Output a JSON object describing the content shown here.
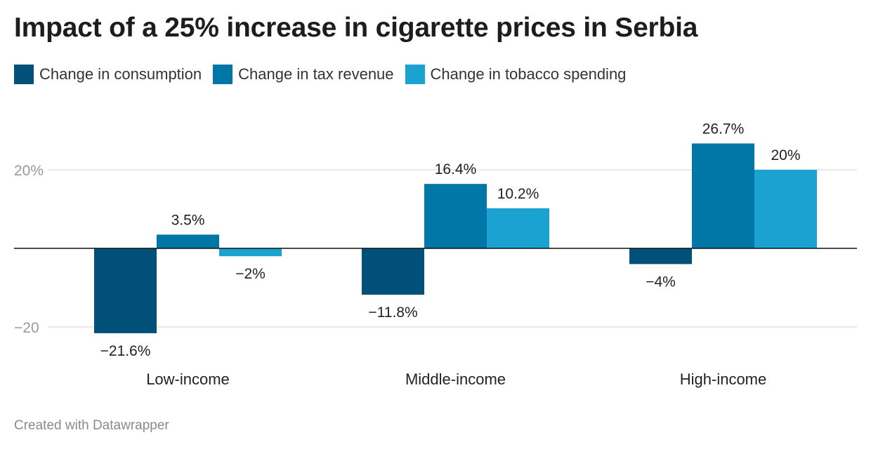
{
  "chart_data": {
    "type": "bar",
    "title": "Impact of a 25% increase in cigarette prices in Serbia",
    "categories": [
      "Low-income",
      "Middle-income",
      "High-income"
    ],
    "series": [
      {
        "name": "Change in consumption",
        "values": [
          -21.6,
          -11.8,
          -4
        ],
        "labels": [
          "−21.6%",
          "−11.8%",
          "−4%"
        ],
        "color": "#00507a"
      },
      {
        "name": "Change in tax revenue",
        "values": [
          3.5,
          16.4,
          26.7
        ],
        "labels": [
          "3.5%",
          "16.4%",
          "26.7%"
        ],
        "color": "#0077a6"
      },
      {
        "name": "Change in tobacco spending",
        "values": [
          -2,
          10.2,
          20
        ],
        "labels": [
          "−2%",
          "10.2%",
          "20%"
        ],
        "color": "#1aa2d1"
      }
    ],
    "yticks": [
      {
        "value": 20,
        "label": "20%"
      },
      {
        "value": -20,
        "label": "−20"
      }
    ],
    "ylim": [
      -24,
      28
    ],
    "grid": true,
    "legend_position": "top-left",
    "xlabel": "",
    "ylabel": ""
  },
  "footer": {
    "credit": "Created with Datawrapper"
  }
}
